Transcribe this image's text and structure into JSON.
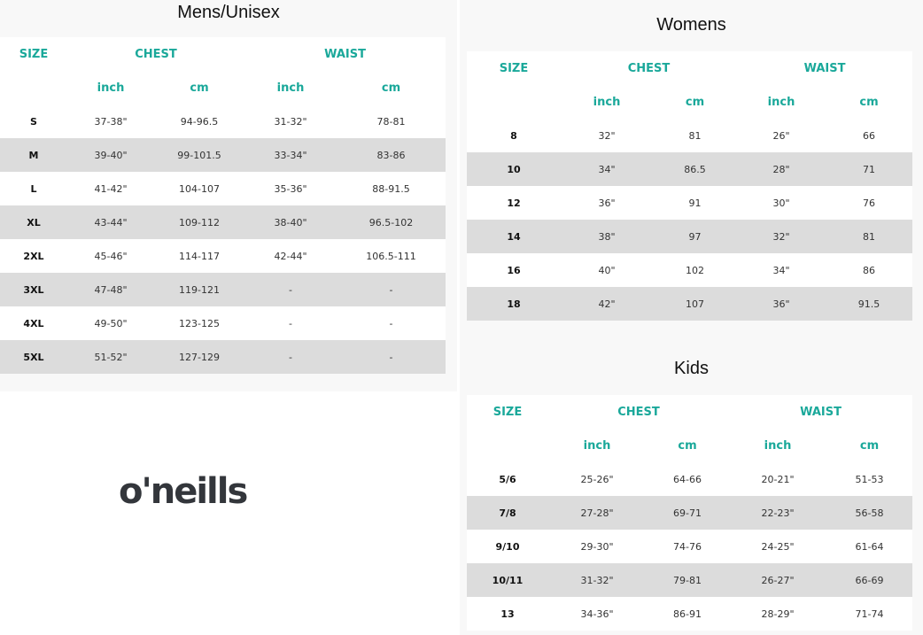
{
  "headers": {
    "size": "SIZE",
    "chest": "CHEST",
    "waist": "WAIST",
    "inch": "inch",
    "cm": "cm"
  },
  "accent_color": "#1aa89a",
  "logo": "o'neills",
  "tables": {
    "mens": {
      "title": "Mens/Unisex",
      "rows": [
        [
          "S",
          "37-38\"",
          "94-96.5",
          "31-32\"",
          "78-81"
        ],
        [
          "M",
          "39-40\"",
          "99-101.5",
          "33-34\"",
          "83-86"
        ],
        [
          "L",
          "41-42\"",
          "104-107",
          "35-36\"",
          "88-91.5"
        ],
        [
          "XL",
          "43-44\"",
          "109-112",
          "38-40\"",
          "96.5-102"
        ],
        [
          "2XL",
          "45-46\"",
          "114-117",
          "42-44\"",
          "106.5-111"
        ],
        [
          "3XL",
          "47-48\"",
          "119-121",
          "-",
          "-"
        ],
        [
          "4XL",
          "49-50\"",
          "123-125",
          "-",
          "-"
        ],
        [
          "5XL",
          "51-52\"",
          "127-129",
          "-",
          "-"
        ]
      ]
    },
    "womens": {
      "title": "Womens",
      "rows": [
        [
          "8",
          "32\"",
          "81",
          "26\"",
          "66"
        ],
        [
          "10",
          "34\"",
          "86.5",
          "28\"",
          "71"
        ],
        [
          "12",
          "36\"",
          "91",
          "30\"",
          "76"
        ],
        [
          "14",
          "38\"",
          "97",
          "32\"",
          "81"
        ],
        [
          "16",
          "40\"",
          "102",
          "34\"",
          "86"
        ],
        [
          "18",
          "42\"",
          "107",
          "36\"",
          "91.5"
        ]
      ]
    },
    "kids": {
      "title": "Kids",
      "rows": [
        [
          "5/6",
          "25-26\"",
          "64-66",
          "20-21\"",
          "51-53"
        ],
        [
          "7/8",
          "27-28\"",
          "69-71",
          "22-23\"",
          "56-58"
        ],
        [
          "9/10",
          "29-30\"",
          "74-76",
          "24-25\"",
          "61-64"
        ],
        [
          "10/11",
          "31-32\"",
          "79-81",
          "26-27\"",
          "66-69"
        ],
        [
          "13",
          "34-36\"",
          "86-91",
          "28-29\"",
          "71-74"
        ]
      ]
    }
  }
}
